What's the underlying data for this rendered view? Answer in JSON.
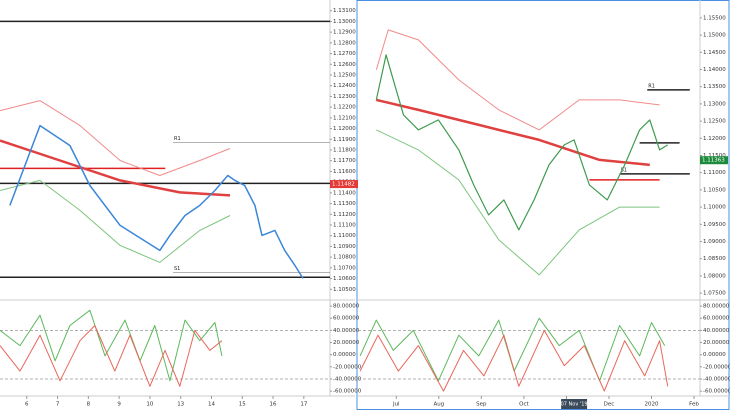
{
  "chart_data": [
    {
      "type": "line",
      "xlim": [
        -0.87,
        9.85
      ],
      "ylim": [
        1.104,
        1.132
      ],
      "yticks": [
        {
          "value": 1.131,
          "label": "1.13100"
        },
        {
          "value": 1.13,
          "label": "1.13000"
        },
        {
          "value": 1.129,
          "label": "1.12900"
        },
        {
          "value": 1.128,
          "label": "1.12800"
        },
        {
          "value": 1.127,
          "label": "1.12700"
        },
        {
          "value": 1.126,
          "label": "1.12600"
        },
        {
          "value": 1.125,
          "label": "1.12500"
        },
        {
          "value": 1.124,
          "label": "1.12400"
        },
        {
          "value": 1.123,
          "label": "1.12300"
        },
        {
          "value": 1.122,
          "label": "1.12200"
        },
        {
          "value": 1.121,
          "label": "1.12100"
        },
        {
          "value": 1.12,
          "label": "1.12000"
        },
        {
          "value": 1.119,
          "label": "1.11900"
        },
        {
          "value": 1.118,
          "label": "1.11800"
        },
        {
          "value": 1.117,
          "label": "1.11700"
        },
        {
          "value": 1.116,
          "label": "1.11600"
        },
        {
          "value": 1.115,
          "label": "1.11500"
        },
        {
          "value": 1.114,
          "label": "1.11400"
        },
        {
          "value": 1.113,
          "label": "1.11300"
        },
        {
          "value": 1.112,
          "label": "1.11200"
        },
        {
          "value": 1.111,
          "label": "1.11100"
        },
        {
          "value": 1.11,
          "label": "1.11000"
        },
        {
          "value": 1.109,
          "label": "1.10900"
        },
        {
          "value": 1.108,
          "label": "1.10800"
        },
        {
          "value": 1.107,
          "label": "1.10700"
        },
        {
          "value": 1.106,
          "label": "1.10600"
        },
        {
          "value": 1.105,
          "label": "1.10500"
        }
      ],
      "series": [
        {
          "color": "#f08a8a",
          "x": [
            -0.87,
            0.43,
            1.73,
            3.03,
            4.32,
            5.62,
            6.6
          ],
          "values": [
            1.12168,
            1.12261,
            1.12028,
            1.11702,
            1.11562,
            1.11702,
            1.11814
          ]
        },
        {
          "color": "#7cc47c",
          "x": [
            -0.87,
            0.43,
            1.73,
            3.03,
            4.32,
            5.62,
            6.6
          ],
          "values": [
            1.11422,
            1.11516,
            1.11236,
            1.1091,
            1.10751,
            1.1105,
            1.11189
          ]
        },
        {
          "color": "#e04040",
          "width": 2.5,
          "x": [
            -0.87,
            1.08,
            3.03,
            4.97,
            6.6
          ],
          "values": [
            1.11888,
            1.11702,
            1.11516,
            1.11404,
            1.11376
          ]
        },
        {
          "color": "#3a86d8",
          "width": 1.5,
          "x": [
            -0.55,
            0.43,
            1.4,
            2.05,
            3.03,
            4.32,
            4.65,
            5.14,
            5.62,
            6.11,
            6.53,
            6.76,
            7.08,
            7.41,
            7.64,
            8.06,
            8.38,
            8.71,
            8.97
          ],
          "values": [
            1.11283,
            1.12028,
            1.11842,
            1.11469,
            1.11096,
            1.10863,
            1.11003,
            1.11189,
            1.11283,
            1.11422,
            1.11562,
            1.11516,
            1.11469,
            1.11283,
            1.11003,
            1.1105,
            1.10863,
            1.10723,
            1.10602
          ]
        }
      ],
      "levels": [
        {
          "value": 1.13,
          "color": "#222",
          "from": -0.87,
          "to": 9.85
        },
        {
          "value": 1.11628,
          "color": "#e02020",
          "from": -0.87,
          "to": 4.5
        },
        {
          "value": 1.11488,
          "color": "#222",
          "from": -0.87,
          "to": 9.85
        },
        {
          "value": 1.10612,
          "color": "#222",
          "from": -0.87,
          "to": 9.85
        },
        {
          "value": 1.1187,
          "color": "#999",
          "from": 4.75,
          "to": 9.85,
          "label": "R1"
        },
        {
          "value": 1.10658,
          "color": "#999",
          "from": 4.75,
          "to": 9.85,
          "label": "S1"
        }
      ],
      "price_tag": {
        "value": 1.11482,
        "label": "1.11482",
        "color": "#e53935"
      }
    },
    {
      "type": "line",
      "xlim": [
        -0.87,
        9.85
      ],
      "ylim": [
        -68,
        90
      ],
      "yticks": [
        {
          "value": 80,
          "label": "80.00000"
        },
        {
          "value": 60,
          "label": "60.00000"
        },
        {
          "value": 40,
          "label": "40.00000"
        },
        {
          "value": 20,
          "label": "20.00000"
        },
        {
          "value": 0,
          "label": "0.00000"
        },
        {
          "value": -20,
          "label": "-20.00000"
        },
        {
          "value": -40,
          "label": "-40.00000"
        },
        {
          "value": -60,
          "label": "-60.00000"
        }
      ],
      "xticks": [
        {
          "value": 0,
          "label": "6"
        },
        {
          "value": 1,
          "label": "7"
        },
        {
          "value": 2,
          "label": "8"
        },
        {
          "value": 3,
          "label": "9"
        },
        {
          "value": 4,
          "label": "10"
        },
        {
          "value": 5,
          "label": "13"
        },
        {
          "value": 6,
          "label": "14"
        },
        {
          "value": 7,
          "label": "15"
        },
        {
          "value": 8,
          "label": "16"
        },
        {
          "value": 9,
          "label": "17"
        }
      ],
      "series": [
        {
          "color": "#5cb85c",
          "x": [
            -0.87,
            -0.22,
            0.43,
            0.92,
            1.4,
            2.05,
            2.54,
            3.19,
            3.68,
            4.16,
            4.65,
            5.14,
            5.62,
            6.11,
            6.34
          ],
          "values": [
            40,
            15,
            65,
            -10,
            48,
            73,
            -2,
            57,
            -10,
            48,
            -43,
            57,
            23,
            53,
            -2
          ]
        },
        {
          "color": "#e8675a",
          "x": [
            -0.87,
            -0.22,
            0.43,
            1.08,
            1.73,
            2.21,
            2.86,
            3.35,
            4.0,
            4.49,
            4.97,
            5.46,
            5.95,
            6.34
          ],
          "values": [
            15,
            -27,
            32,
            -43,
            23,
            48,
            -27,
            32,
            -52,
            7,
            -52,
            40,
            7,
            23
          ]
        }
      ],
      "levels": [
        {
          "value": 40,
          "color": "#999",
          "from": -0.87,
          "to": 9.85,
          "style": "dashed"
        },
        {
          "value": -40,
          "color": "#999",
          "from": -0.87,
          "to": 9.85,
          "style": "dashed"
        }
      ]
    },
    {
      "type": "line",
      "xlim": [
        -0.9,
        7.14
      ],
      "ylim": [
        1.073,
        1.1602
      ],
      "yticks": [
        {
          "value": 1.155,
          "label": "1.15500"
        },
        {
          "value": 1.15,
          "label": "1.15000"
        },
        {
          "value": 1.145,
          "label": "1.14500"
        },
        {
          "value": 1.14,
          "label": "1.14000"
        },
        {
          "value": 1.135,
          "label": "1.13500"
        },
        {
          "value": 1.13,
          "label": "1.13000"
        },
        {
          "value": 1.125,
          "label": "1.12500"
        },
        {
          "value": 1.12,
          "label": "1.12000"
        },
        {
          "value": 1.115,
          "label": "1.11500"
        },
        {
          "value": 1.11,
          "label": "1.11000"
        },
        {
          "value": 1.105,
          "label": "1.10500"
        },
        {
          "value": 1.1,
          "label": "1.10000"
        },
        {
          "value": 1.095,
          "label": "1.09500"
        },
        {
          "value": 1.09,
          "label": "1.09000"
        },
        {
          "value": 1.085,
          "label": "1.08500"
        },
        {
          "value": 1.08,
          "label": "1.08000"
        },
        {
          "value": 1.075,
          "label": "1.07500"
        }
      ],
      "series": [
        {
          "color": "#f08a8a",
          "x": [
            -0.47,
            -0.19,
            0.52,
            1.47,
            2.41,
            3.36,
            4.3,
            5.25,
            6.19
          ],
          "values": [
            1.13988,
            1.15151,
            1.1486,
            1.13698,
            1.12826,
            1.12244,
            1.13116,
            1.13116,
            1.12971
          ]
        },
        {
          "color": "#7cc47c",
          "x": [
            -0.47,
            0.52,
            1.47,
            2.41,
            3.36,
            4.3,
            5.25,
            6.19
          ],
          "values": [
            1.12244,
            1.11663,
            1.1079,
            1.09047,
            1.08029,
            1.09337,
            1.1,
            1.1
          ]
        },
        {
          "color": "#e04040",
          "width": 2.5,
          "x": [
            -0.47,
            0.52,
            1.94,
            3.36,
            4.78,
            5.96
          ],
          "values": [
            1.13116,
            1.12826,
            1.1239,
            1.11953,
            1.11372,
            1.11227
          ]
        },
        {
          "color": "#3f9a4f",
          "width": 1.2,
          "x": [
            -0.47,
            -0.24,
            -0.07,
            0.17,
            0.52,
            0.99,
            1.47,
            1.82,
            2.17,
            2.53,
            2.88,
            3.24,
            3.59,
            3.95,
            4.18,
            4.54,
            4.96,
            5.37,
            5.72,
            5.96,
            6.19,
            6.38
          ],
          "values": [
            1.13116,
            1.14424,
            1.13698,
            1.1268,
            1.12244,
            1.12535,
            1.11663,
            1.10645,
            1.09773,
            1.10209,
            1.09337,
            1.10209,
            1.11227,
            1.11808,
            1.11953,
            1.10645,
            1.10209,
            1.11227,
            1.12244,
            1.12535,
            1.11663,
            1.11808
          ]
        }
      ],
      "levels": [
        {
          "value": 1.13407,
          "color": "#222",
          "from": 5.9,
          "to": 6.9,
          "label": "R1"
        },
        {
          "value": 1.11866,
          "color": "#222",
          "from": 5.72,
          "to": 6.66
        },
        {
          "value": 1.10965,
          "color": "#222",
          "from": 5.25,
          "to": 6.9,
          "label": "S1"
        },
        {
          "value": 1.1079,
          "color": "#e02020",
          "from": 4.54,
          "to": 6.19
        }
      ],
      "price_tag": {
        "value": 1.11363,
        "label": "1.11363",
        "color": "#1b8a3a"
      }
    },
    {
      "type": "line",
      "xlim": [
        -0.9,
        7.14
      ],
      "ylim": [
        -68,
        90
      ],
      "yticks": [
        {
          "value": 80,
          "label": "80.00000"
        },
        {
          "value": 60,
          "label": "60.00000"
        },
        {
          "value": 40,
          "label": "40.00000"
        },
        {
          "value": 20,
          "label": "20.00000"
        },
        {
          "value": 0,
          "label": "0.00000"
        },
        {
          "value": -20,
          "label": "-20.00000"
        },
        {
          "value": -40,
          "label": "-40.00000"
        },
        {
          "value": -60,
          "label": "-60.00000"
        }
      ],
      "xticks": [
        {
          "value": 0,
          "label": "Jul"
        },
        {
          "value": 1,
          "label": "Aug"
        },
        {
          "value": 2,
          "label": "Sep"
        },
        {
          "value": 3,
          "label": "Oct"
        },
        {
          "value": 4,
          "label": "Nov"
        },
        {
          "value": 5,
          "label": "Dec"
        },
        {
          "value": 6,
          "label": "2020"
        },
        {
          "value": 7,
          "label": "Feb"
        }
      ],
      "crosshair": {
        "value": 4.18,
        "label": "07 Nov '19"
      },
      "series": [
        {
          "color": "#5cb85c",
          "x": [
            -0.85,
            -0.47,
            -0.07,
            0.4,
            0.99,
            1.47,
            1.94,
            2.41,
            2.77,
            3.36,
            3.83,
            4.3,
            4.78,
            5.25,
            5.72,
            6.0,
            6.31
          ],
          "values": [
            -2,
            57,
            7,
            40,
            -43,
            32,
            -2,
            57,
            -27,
            60,
            15,
            40,
            -43,
            48,
            -2,
            53,
            15
          ]
        },
        {
          "color": "#e8675a",
          "x": [
            -0.85,
            -0.43,
            0.05,
            0.52,
            1.11,
            1.58,
            2.06,
            2.53,
            2.88,
            3.48,
            3.95,
            4.42,
            4.89,
            5.37,
            5.84,
            6.19,
            6.38
          ],
          "values": [
            -27,
            32,
            -27,
            15,
            -60,
            7,
            -35,
            32,
            -52,
            40,
            -18,
            15,
            -60,
            23,
            -35,
            23,
            -52
          ]
        }
      ],
      "levels": [
        {
          "value": 40,
          "color": "#999",
          "from": -0.9,
          "to": 7.14,
          "style": "dashed"
        },
        {
          "value": -40,
          "color": "#999",
          "from": -0.9,
          "to": 7.14,
          "style": "dashed"
        }
      ]
    }
  ]
}
